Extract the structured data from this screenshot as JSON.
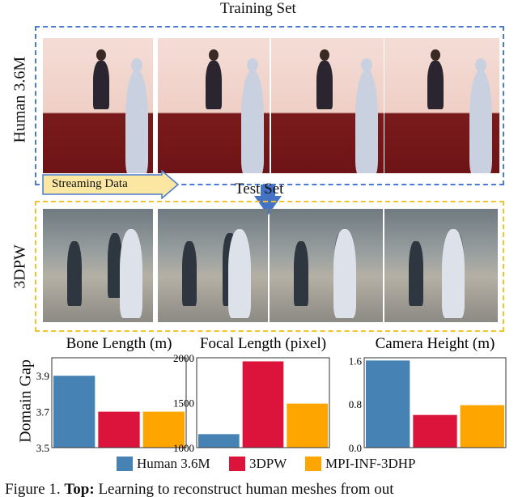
{
  "figure": {
    "training_title": "Training Set",
    "test_title": "Test Set",
    "train_dataset_label": "Human 3.6M",
    "test_dataset_label": "3DPW",
    "stream_label": "Streaming Data",
    "y_axis_label": "Domain Gap",
    "caption_bold": "Top:",
    "caption_prefix": "Figure 1. ",
    "caption_rest": " Learning to reconstruct human meshes from out",
    "colors": {
      "train_box": "#4a7bd0",
      "test_box": "#f2c230",
      "arrow": "#4472c4",
      "stream_fill": "#fbe7a1"
    }
  },
  "chart_data": [
    {
      "type": "bar",
      "title": "Bone Length (m)",
      "categories": [
        "Human 3.6M",
        "3DPW",
        "MPI-INF-3DHP"
      ],
      "values": [
        3.9,
        3.7,
        3.7
      ],
      "ylim": [
        3.5,
        4.0
      ],
      "yticks": [
        "3.5",
        "3.7",
        "3.9"
      ],
      "ytick_values": [
        3.5,
        3.7,
        3.9
      ],
      "ylabel": "Domain Gap"
    },
    {
      "type": "bar",
      "title": "Focal Length (pixel)",
      "categories": [
        "Human 3.6M",
        "3DPW",
        "MPI-INF-3DHP"
      ],
      "values": [
        1150,
        1960,
        1490
      ],
      "ylim": [
        1000,
        2000
      ],
      "yticks": [
        "1000",
        "1500",
        "2000"
      ],
      "ytick_values": [
        1000,
        1500,
        2000
      ]
    },
    {
      "type": "bar",
      "title": "Camera Height (m)",
      "categories": [
        "Human 3.6M",
        "3DPW",
        "MPI-INF-3DHP"
      ],
      "values": [
        1.6,
        0.6,
        0.78
      ],
      "ylim": [
        0,
        1.65
      ],
      "yticks": [
        "0.0",
        "0.8",
        "1.6"
      ],
      "ytick_values": [
        0,
        0.8,
        1.6
      ]
    }
  ],
  "legend": [
    {
      "label": "Human 3.6M",
      "color": "#4682b4"
    },
    {
      "label": "3DPW",
      "color": "#dc143c"
    },
    {
      "label": "MPI-INF-3DHP",
      "color": "#ffa500"
    }
  ]
}
